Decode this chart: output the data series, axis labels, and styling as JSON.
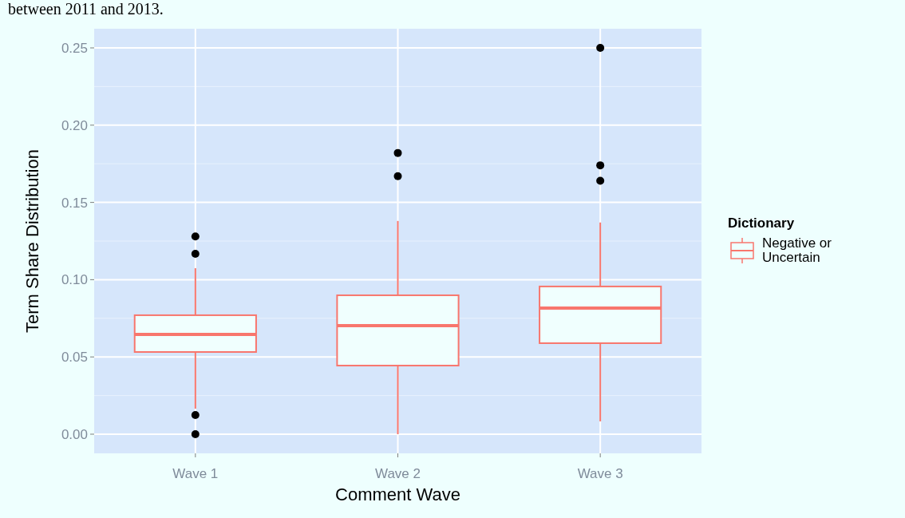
{
  "chart_data": {
    "type": "box",
    "annotations": [
      "between 2011 and 2013."
    ],
    "xlabel": "Comment Wave",
    "ylabel": "Term Share Distribution",
    "legend_title": "Dictionary",
    "legend": "right",
    "grid": true,
    "categories": [
      "Wave 1",
      "Wave 2",
      "Wave 3"
    ],
    "ylim": [
      -0.0124,
      0.2624
    ],
    "yticks": [
      {
        "value": 0,
        "label": "0.00"
      },
      {
        "value": 0.05,
        "label": "0.05"
      },
      {
        "value": 0.1,
        "label": "0.10"
      },
      {
        "value": 0.15,
        "label": "0.15"
      },
      {
        "value": 0.2,
        "label": "0.20"
      },
      {
        "value": 0.25,
        "label": "0.25"
      }
    ],
    "series": [
      {
        "name": "Negative or Uncertain",
        "color": "#f8766d",
        "boxes": [
          {
            "low": 0.0165,
            "q1": 0.0532,
            "median": 0.0646,
            "q3": 0.077,
            "high": 0.1074,
            "outliers": [
              0.128,
              0.1167,
              0.0124,
              0
            ]
          },
          {
            "low": 0,
            "q1": 0.0444,
            "median": 0.0702,
            "q3": 0.0899,
            "high": 0.138,
            "outliers": [
              0.182,
              0.167
            ]
          },
          {
            "low": 0.0083,
            "q1": 0.0589,
            "median": 0.0816,
            "q3": 0.0956,
            "high": 0.137,
            "outliers": [
              0.25,
              0.174,
              0.164
            ]
          }
        ]
      }
    ]
  }
}
